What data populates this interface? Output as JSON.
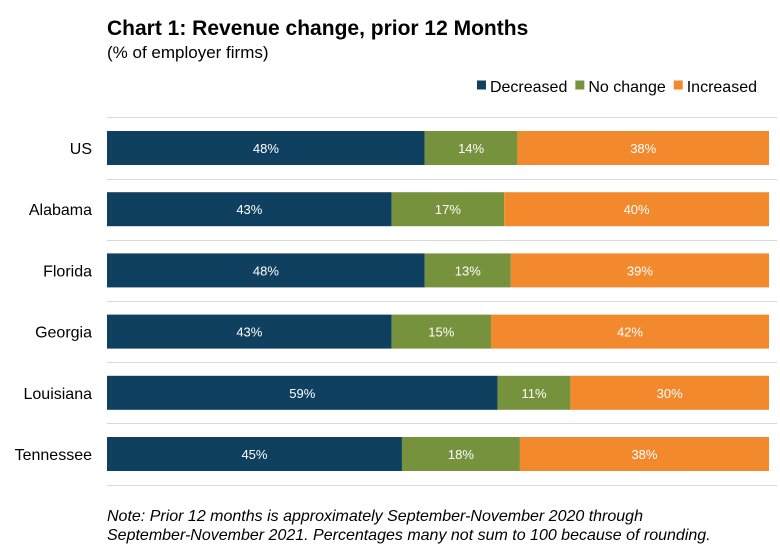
{
  "title": "Chart 1: Revenue change, prior 12 Months",
  "subtitle": "(% of employer firms)",
  "note": {
    "line1": "Note: Prior 12 months is approximately September-November 2020 through",
    "line2": "September-November 2021. Percentages many not sum to 100 because of rounding."
  },
  "chart_data": {
    "type": "bar",
    "orientation": "horizontal",
    "stacked": true,
    "categories": [
      "US",
      "Alabama",
      "Florida",
      "Georgia",
      "Louisiana",
      "Tennessee"
    ],
    "series": [
      {
        "name": "Decreased",
        "color": "#10405f",
        "values": [
          48,
          43,
          48,
          43,
          59,
          45
        ]
      },
      {
        "name": "No change",
        "color": "#77923c",
        "values": [
          14,
          17,
          13,
          15,
          11,
          18
        ]
      },
      {
        "name": "Increased",
        "color": "#f28a2d",
        "values": [
          38,
          40,
          39,
          42,
          30,
          38
        ]
      }
    ],
    "data_label_suffix": "%",
    "legend": "top-right",
    "xlim": [
      0,
      100
    ],
    "grid": true
  }
}
